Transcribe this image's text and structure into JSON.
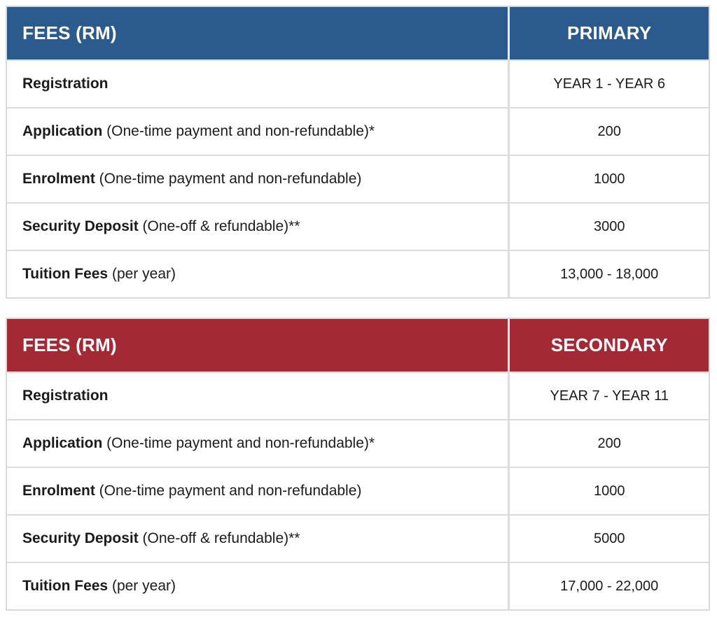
{
  "tables": [
    {
      "id": "primary",
      "accent_hex": "#2B5A8C",
      "header": {
        "fees_label": "FEES (RM)",
        "level_label": "PRIMARY"
      },
      "rows": [
        {
          "label_bold": "Registration",
          "label_note": "",
          "value": "YEAR 1 - YEAR 6"
        },
        {
          "label_bold": "Application",
          "label_note": " (One-time payment and non-refundable)*",
          "value": "200"
        },
        {
          "label_bold": "Enrolment",
          "label_note": " (One-time payment and non-refundable)",
          "value": "1000"
        },
        {
          "label_bold": "Security Deposit",
          "label_note": " (One-off & refundable)**",
          "value": "3000"
        },
        {
          "label_bold": "Tuition Fees",
          "label_note": " (per year)",
          "value": "13,000 - 18,000"
        }
      ]
    },
    {
      "id": "secondary",
      "accent_hex": "#A32A34",
      "header": {
        "fees_label": "FEES (RM)",
        "level_label": "SECONDARY"
      },
      "rows": [
        {
          "label_bold": "Registration",
          "label_note": "",
          "value": "YEAR 7 - YEAR 11"
        },
        {
          "label_bold": "Application",
          "label_note": " (One-time payment and non-refundable)*",
          "value": "200"
        },
        {
          "label_bold": "Enrolment",
          "label_note": " (One-time payment and non-refundable)",
          "value": "1000"
        },
        {
          "label_bold": "Security Deposit",
          "label_note": " (One-off & refundable)**",
          "value": "5000"
        },
        {
          "label_bold": "Tuition Fees",
          "label_note": " (per year)",
          "value": "17,000 - 22,000"
        }
      ]
    }
  ]
}
